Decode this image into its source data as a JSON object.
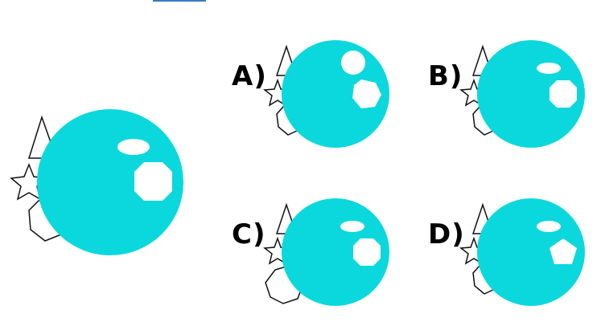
{
  "colors": {
    "sphere": "#0bd8dc",
    "highlight": "#ffffff",
    "outline": "#111111",
    "background": "#ffffff",
    "accent_bar": "#3a78c8"
  },
  "reference": {
    "label": "",
    "parts": [
      "triangle-outline",
      "star-outline",
      "heptagon-outline",
      "cyan-sphere",
      "ellipse-highlight",
      "octagon-highlight"
    ]
  },
  "options": [
    {
      "label": "A)",
      "top_highlight": "circle",
      "side_highlight": "heptagon",
      "back_shape": "heptagon-outline"
    },
    {
      "label": "B)",
      "top_highlight": "ellipse",
      "side_highlight": "octagon",
      "back_shape": "heptagon-outline"
    },
    {
      "label": "C)",
      "top_highlight": "ellipse",
      "side_highlight": "octagon",
      "back_shape": "octagon-outline"
    },
    {
      "label": "D)",
      "top_highlight": "ellipse",
      "side_highlight": "pentagon",
      "back_shape": "heptagon-outline"
    }
  ]
}
